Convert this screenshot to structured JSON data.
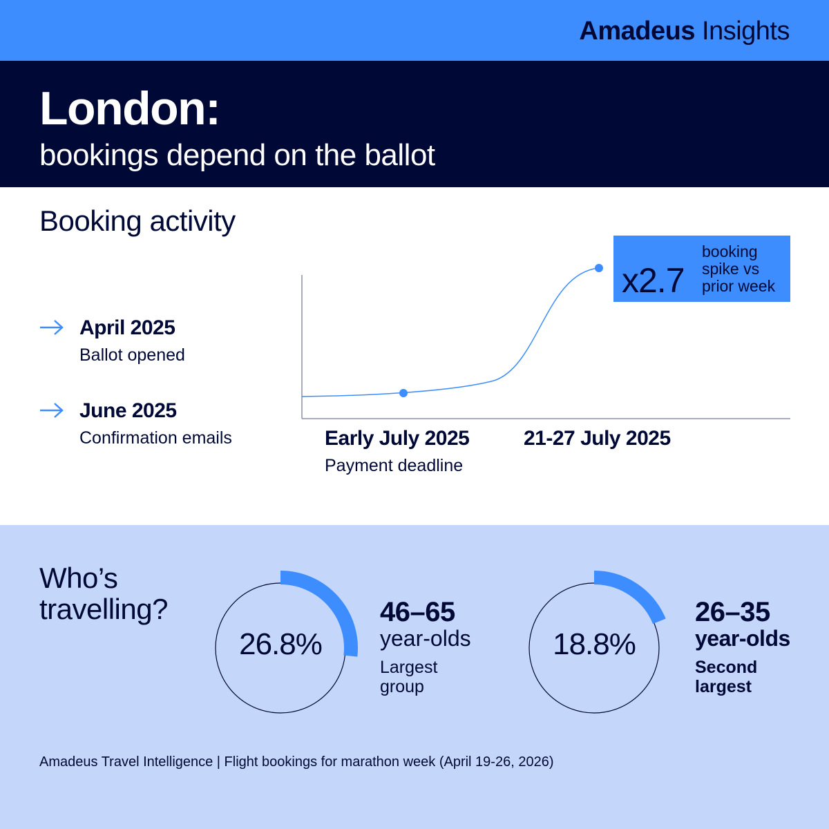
{
  "brand": {
    "bold": "Amadeus",
    "light": "Insights"
  },
  "header": {
    "title": "London:",
    "subtitle": "bookings depend on the ballot"
  },
  "booking": {
    "title": "Booking activity",
    "timeline": [
      {
        "date": "April 2025",
        "desc": "Ballot opened"
      },
      {
        "date": "June 2025",
        "desc": "Confirmation emails"
      }
    ],
    "callout": {
      "multiplier": "x2.7",
      "note_lines": [
        "booking",
        "spike vs",
        "prior week"
      ]
    },
    "x_points": [
      {
        "label": "Early July 2025",
        "sub": "Payment deadline"
      },
      {
        "label": "21-27 July 2025",
        "sub": ""
      }
    ]
  },
  "chart_data": {
    "type": "line",
    "title": "Booking activity",
    "x": [
      "Early July 2025",
      "21-27 July 2025"
    ],
    "series": [
      {
        "values": [
          1,
          2.7
        ]
      }
    ],
    "annotation": "x2.7 booking spike vs prior week"
  },
  "who": {
    "title_lines": [
      "Who’s",
      "travelling?"
    ],
    "groups": [
      {
        "percent": "26.8%",
        "value": 26.8,
        "age": "46–65",
        "unit": "year-olds",
        "rank_lines": [
          "Largest",
          "group"
        ]
      },
      {
        "percent": "18.8%",
        "value": 18.8,
        "age": "26–35",
        "unit": "year-olds",
        "rank_lines": [
          "Second",
          "largest"
        ]
      }
    ]
  },
  "source": "Amadeus Travel Intelligence | Flight bookings for marathon week (April 19-26, 2026)",
  "colors": {
    "navy": "#000835",
    "blue": "#3d8dff",
    "light_blue": "#c4d6fa"
  }
}
